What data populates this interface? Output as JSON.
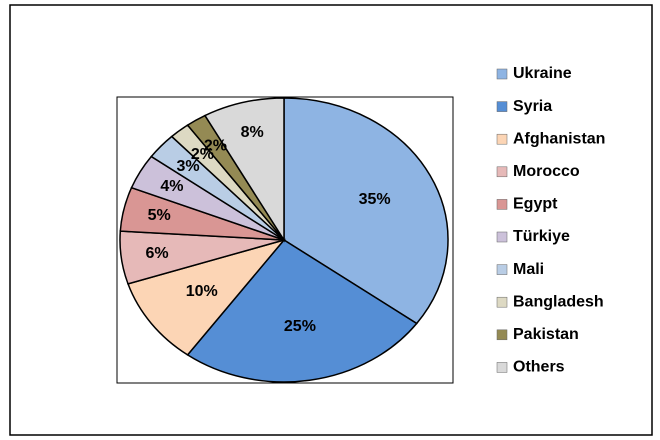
{
  "chart_data": {
    "type": "pie",
    "categories": [
      "Ukraine",
      "Syria",
      "Afghanistan",
      "Morocco",
      "Egypt",
      "Türkiye",
      "Mali",
      "Bangladesh",
      "Pakistan",
      "Others"
    ],
    "values": [
      35,
      25,
      10,
      6,
      5,
      4,
      3,
      2,
      2,
      8
    ],
    "value_labels": [
      "35%",
      "25%",
      "10%",
      "6%",
      "5%",
      "4%",
      "3%",
      "2%",
      "2%",
      "8%"
    ],
    "colors": [
      "#8eb4e3",
      "#558ed5",
      "#fcd5b5",
      "#e6b9b8",
      "#d99694",
      "#ccc1da",
      "#b9cde5",
      "#ddd9c3",
      "#948a54",
      "#d9d9d9"
    ],
    "legend": "right"
  }
}
